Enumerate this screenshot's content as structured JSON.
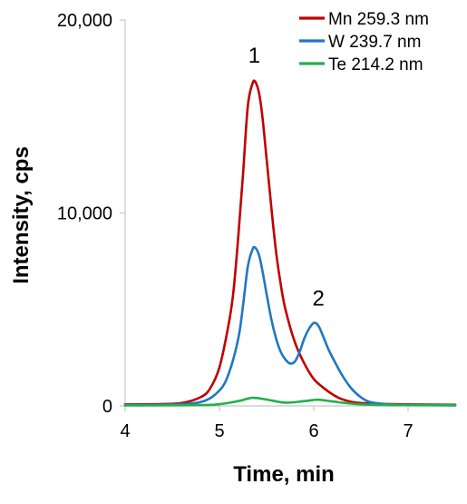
{
  "chart_data": {
    "type": "line",
    "xlabel": "Time, min",
    "ylabel": "Intensity, cps",
    "xlim": [
      4,
      7.5
    ],
    "ylim": [
      0,
      20000
    ],
    "x_ticks": [
      4,
      5,
      6,
      7
    ],
    "x_tick_labels": [
      "4",
      "5",
      "6",
      "7"
    ],
    "y_ticks": [
      0,
      10000,
      20000
    ],
    "y_tick_labels": [
      "0",
      "10,000",
      "20,000"
    ],
    "grid": false,
    "legend_position": "top-right",
    "series": [
      {
        "name": "Mn 259.3 nm",
        "color": "#c00000",
        "x": [
          4.0,
          4.2,
          4.4,
          4.6,
          4.8,
          4.9,
          5.0,
          5.1,
          5.15,
          5.2,
          5.25,
          5.3,
          5.35,
          5.38,
          5.42,
          5.46,
          5.5,
          5.55,
          5.6,
          5.65,
          5.7,
          5.8,
          5.9,
          6.0,
          6.1,
          6.2,
          6.3,
          6.5,
          7.0,
          7.5
        ],
        "y": [
          80,
          80,
          100,
          150,
          450,
          900,
          2000,
          4300,
          6000,
          8800,
          12000,
          15500,
          16700,
          16800,
          16200,
          14800,
          12800,
          10300,
          8000,
          6300,
          5000,
          3300,
          2200,
          1400,
          950,
          600,
          350,
          150,
          80,
          60
        ]
      },
      {
        "name": "W 239.7 nm",
        "color": "#1f77c4",
        "x": [
          4.0,
          4.4,
          4.8,
          5.0,
          5.1,
          5.2,
          5.25,
          5.3,
          5.35,
          5.38,
          5.42,
          5.46,
          5.5,
          5.55,
          5.6,
          5.65,
          5.7,
          5.75,
          5.8,
          5.85,
          5.9,
          5.95,
          6.0,
          6.05,
          6.1,
          6.15,
          6.2,
          6.3,
          6.4,
          6.5,
          6.6,
          6.8,
          7.0,
          7.5
        ],
        "y": [
          50,
          60,
          200,
          800,
          1700,
          3500,
          5200,
          7200,
          8100,
          8200,
          7800,
          6900,
          5800,
          4500,
          3500,
          2800,
          2400,
          2200,
          2300,
          2800,
          3500,
          4000,
          4300,
          4150,
          3600,
          3000,
          2500,
          1600,
          900,
          450,
          200,
          80,
          50,
          30
        ]
      },
      {
        "name": "Te 214.2 nm",
        "color": "#22b04a",
        "x": [
          4.0,
          4.8,
          5.0,
          5.2,
          5.35,
          5.5,
          5.7,
          5.9,
          6.05,
          6.2,
          6.5,
          7.0,
          7.5
        ],
        "y": [
          30,
          40,
          90,
          250,
          420,
          330,
          170,
          250,
          320,
          230,
          80,
          40,
          40
        ]
      }
    ],
    "annotations": [
      {
        "text": "1",
        "x": 5.37,
        "y": 17800
      },
      {
        "text": "2",
        "x": 6.05,
        "y": 5200
      }
    ]
  }
}
